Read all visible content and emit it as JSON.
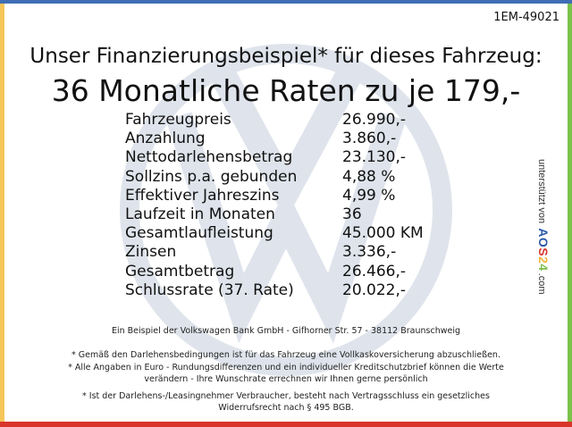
{
  "listing_code": "1EM-49021",
  "headline": "Unser Finanzierungsbeispiel* für dieses Fahrzeug:",
  "subheadline": "36 Monatliche Raten zu je 179,-",
  "rows": [
    {
      "label": "Fahrzeugpreis",
      "value": "26.990,-"
    },
    {
      "label": "Anzahlung",
      "value": "3.860,-"
    },
    {
      "label": "Nettodarlehensbetrag",
      "value": "23.130,-"
    },
    {
      "label": "Sollzins p.a. gebunden",
      "value": "4,88 %"
    },
    {
      "label": "Effektiver Jahreszins",
      "value": "4,99 %"
    },
    {
      "label": "Laufzeit in Monaten",
      "value": "36"
    },
    {
      "label": "Gesamtlaufleistung",
      "value": "45.000 KM"
    },
    {
      "label": "Zinsen",
      "value": "3.336,-"
    },
    {
      "label": "Gesamtbetrag",
      "value": "26.466,-"
    },
    {
      "label": "Schlussrate (37. Rate)",
      "value": "20.022,-"
    }
  ],
  "sidebar": {
    "prefix": "unterstützt von",
    "logo": "AOS24",
    "suffix": ".com"
  },
  "footer": {
    "bank": "Ein Beispiel der Volkswagen Bank GmbH - Gifhorner Str. 57 - 38112 Braunschweig",
    "note1": "* Gemäß den Darlehensbedingungen ist für das Fahrzeug eine Vollkaskoversicherung abzuschließen.",
    "note2a": "* Alle Angaben in Euro - Rundungsdifferenzen und ein individueller Kreditschutzbrief können die Werte",
    "note2b": "verändern - Ihre Wunschrate errechnen wir Ihnen gerne persönlich",
    "note3a": "* Ist der Darlehens-/Leasingnehmer Verbraucher, besteht nach Vertragsschluss ein gesetzliches",
    "note3b": "Widerrufsrecht nach § 495 BGB."
  },
  "colors": {
    "top": "#3f6db5",
    "left": "#f6c659",
    "right": "#7cc24a",
    "bottom": "#d9352a",
    "watermark": "#dfe4ec"
  }
}
